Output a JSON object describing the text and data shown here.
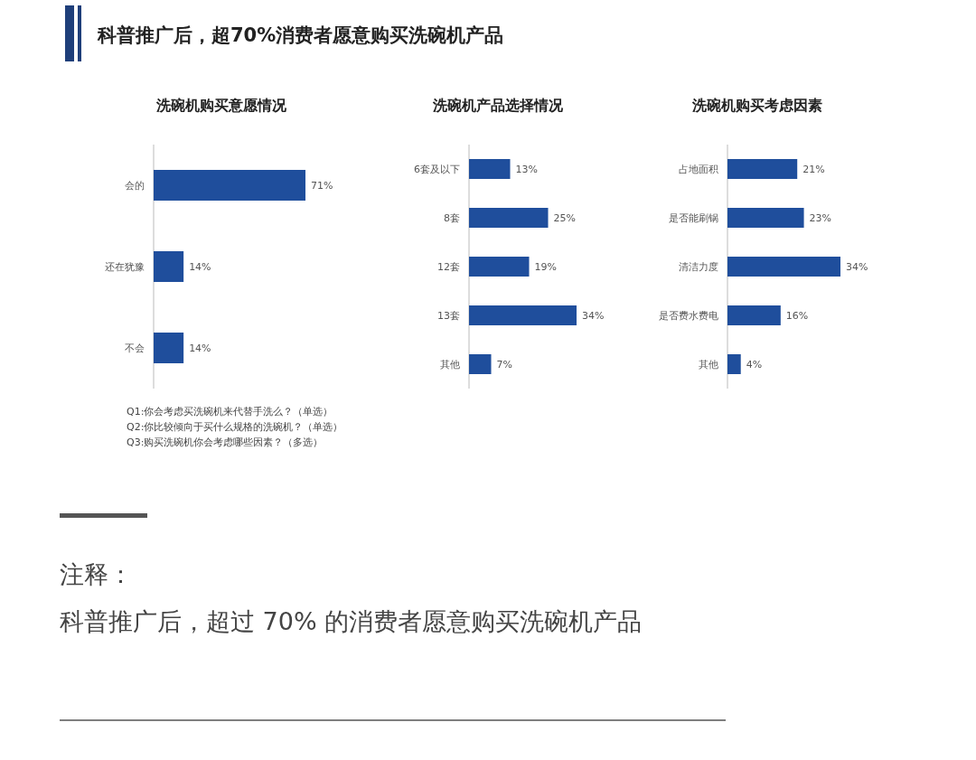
{
  "chart_data": [
    {
      "type": "other",
      "title": "科普推广后，超70%消费者愿意购买洗碗机产品"
    },
    {
      "type": "bar",
      "orientation": "horizontal",
      "title": "洗碗机购买意愿情况",
      "categories": [
        "会的",
        "还在犹豫",
        "不会"
      ],
      "values": [
        71,
        14,
        14
      ],
      "color": "#1f4e9c",
      "value_labels": [
        "71%",
        "14%",
        "14%"
      ],
      "annotations": [
        "Q1:你会考虑买洗碗机来代替手洗么？（单选）",
        "Q2:你比较倾向于买什么规格的洗碗机？（单选）",
        "Q3:购买洗碗机你会考虑哪些因素？（多选）"
      ]
    },
    {
      "type": "bar",
      "orientation": "horizontal",
      "title": "洗碗机产品选择情况",
      "categories": [
        "6套及以下",
        "8套",
        "12套",
        "13套",
        "其他"
      ],
      "values": [
        13,
        25,
        19,
        34,
        7
      ],
      "color": "#1f4e9c",
      "value_labels": [
        "13%",
        "25%",
        "19%",
        "34%",
        "7%"
      ]
    },
    {
      "type": "bar",
      "orientation": "horizontal",
      "title": "洗碗机购买考虑因素",
      "categories": [
        "占地面积",
        "是否能刷锅",
        "清洁力度",
        "是否费水费电",
        "其他"
      ],
      "values": [
        21,
        23,
        34,
        16,
        4
      ],
      "color": "#1f4e9c",
      "value_labels": [
        "21%",
        "23%",
        "34%",
        "16%",
        "4%"
      ]
    },
    {
      "type": "other",
      "annotations": [
        "注释：",
        "科普推广后，超过 70% 的消费者愿意购买洗碗机产品"
      ]
    }
  ]
}
